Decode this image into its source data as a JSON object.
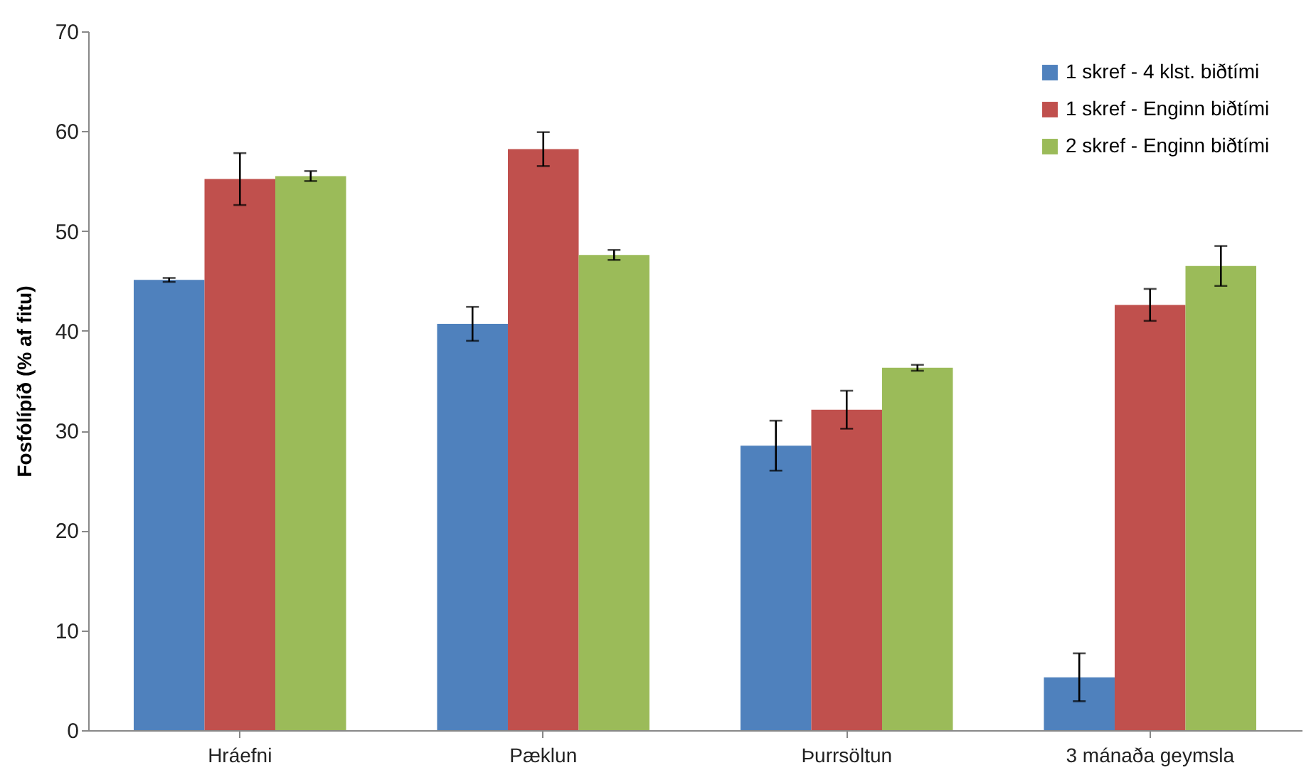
{
  "chart_data": {
    "type": "bar",
    "ylabel": "Fosfólípíð (% af fitu)",
    "categories": [
      "Hráefni",
      "Pæklun",
      "Þurrsöltun",
      "3 mánaða geymsla"
    ],
    "series": [
      {
        "name": "1 skref - 4 klst. biðtími",
        "color": "#4f81bd",
        "values": [
          45.1,
          40.7,
          28.5,
          5.3
        ],
        "errors": [
          0.2,
          1.7,
          2.5,
          2.4
        ]
      },
      {
        "name": "1 skref - Enginn biðtími",
        "color": "#c0504d",
        "values": [
          55.2,
          58.2,
          32.1,
          42.6
        ],
        "errors": [
          2.6,
          1.7,
          1.9,
          1.6
        ]
      },
      {
        "name": "2 skref - Enginn biðtími",
        "color": "#9bbb59",
        "values": [
          55.5,
          47.6,
          36.3,
          46.5
        ],
        "errors": [
          0.5,
          0.5,
          0.3,
          2.0
        ]
      }
    ],
    "ylim": [
      0,
      70
    ],
    "yticks": [
      0,
      10,
      20,
      30,
      40,
      50,
      60,
      70
    ],
    "grid": false,
    "legend": "top right"
  }
}
